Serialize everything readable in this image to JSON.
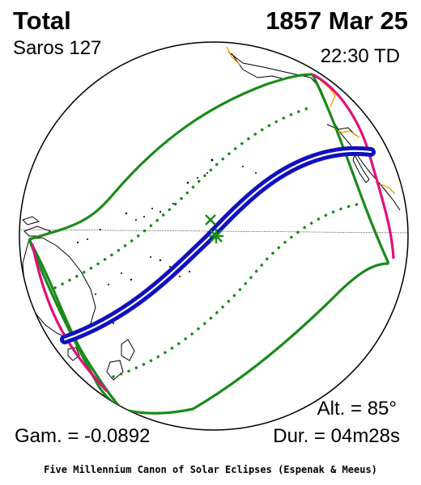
{
  "header": {
    "eclipse_type": "Total",
    "saros": "Saros 127",
    "date": "1857 Mar 25",
    "time": "22:30 TD"
  },
  "footer": {
    "gamma": "Gam. = -0.0892",
    "altitude": "Alt. = 85°",
    "duration": "Dur. = 04m28s",
    "credit": "Five Millennium Canon of Solar Eclipses (Espenak & Meeus)"
  },
  "colors": {
    "globe_outline": "#000000",
    "coastline": "#000000",
    "border": "#f0a000",
    "penumbral_limits": "#1a8a1a",
    "umbral_path": "#1010c0",
    "rise_set_curves": "#e0107a"
  },
  "icons": {
    "greatest_eclipse": "x-mark-icon",
    "sub_solar_point": "asterisk-icon"
  }
}
